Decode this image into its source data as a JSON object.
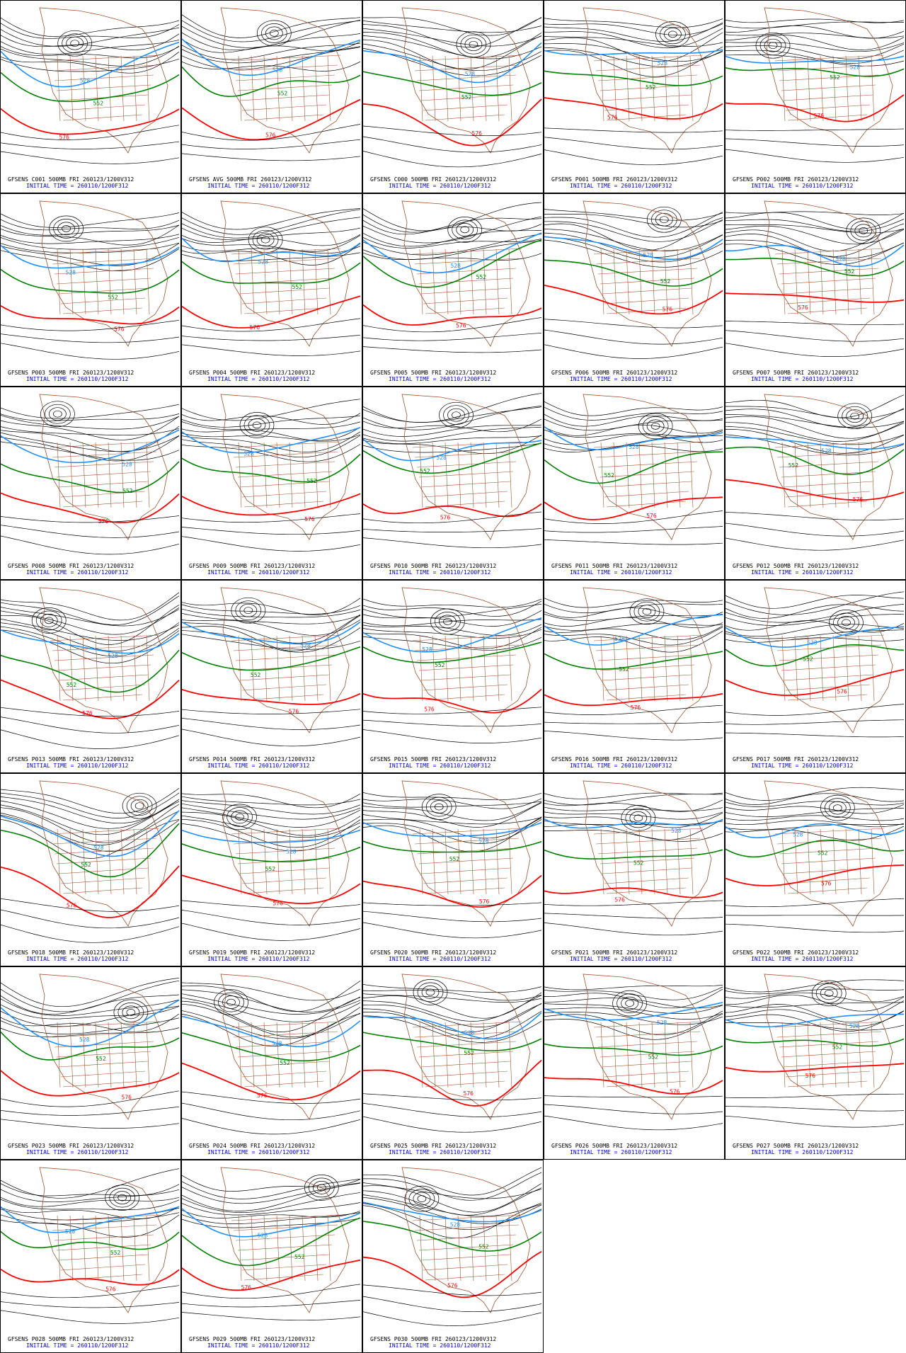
{
  "contour_colors": {
    "c528": "#1e8fff",
    "c552": "#008000",
    "c576": "#ff0000",
    "other": "#000000",
    "map": "#a0522d"
  },
  "contour_labels": {
    "c528": "528",
    "c552": "552",
    "c576": "576"
  },
  "panels": [
    {
      "title": "GFSENS C001 500MB FRI 260123/1200V312",
      "init": "INITIAL TIME = 260110/1200F312"
    },
    {
      "title": "GFSENS AVG 500MB FRI 260123/1200V312",
      "init": "INITIAL TIME = 260110/1200F312"
    },
    {
      "title": "GFSENS C000 500MB FRI 260123/1200V312",
      "init": "INITIAL TIME = 260110/1200F312"
    },
    {
      "title": "GFSENS P001 500MB FRI 260123/1200V312",
      "init": "INITIAL TIME = 260110/1200F312"
    },
    {
      "title": "GFSENS P002 500MB FRI 260123/1200V312",
      "init": "INITIAL TIME = 260110/1200F312"
    },
    {
      "title": "GFSENS P003 500MB FRI 260123/1200V312",
      "init": "INITIAL TIME = 260110/1200F312"
    },
    {
      "title": "GFSENS P004 500MB FRI 260123/1200V312",
      "init": "INITIAL TIME = 260110/1200F312"
    },
    {
      "title": "GFSENS P005 500MB FRI 260123/1200V312",
      "init": "INITIAL TIME = 260110/1200F312"
    },
    {
      "title": "GFSENS P006 500MB FRI 260123/1200V312",
      "init": "INITIAL TIME = 260110/1200F312"
    },
    {
      "title": "GFSENS P007 500MB FRI 260123/1200V312",
      "init": "INITIAL TIME = 260110/1200F312"
    },
    {
      "title": "GFSENS P008 500MB FRI 260123/1200V312",
      "init": "INITIAL TIME = 260110/1200F312"
    },
    {
      "title": "GFSENS P009 500MB FRI 260123/1200V312",
      "init": "INITIAL TIME = 260110/1200F312"
    },
    {
      "title": "GFSENS P010 500MB FRI 260123/1200V312",
      "init": "INITIAL TIME = 260110/1200F312"
    },
    {
      "title": "GFSENS P011 500MB FRI 260123/1200V312",
      "init": "INITIAL TIME = 260110/1200F312"
    },
    {
      "title": "GFSENS P012 500MB FRI 260123/1200V312",
      "init": "INITIAL TIME = 260110/1200F312"
    },
    {
      "title": "GFSENS P013 500MB FRI 260123/1200V312",
      "init": "INITIAL TIME = 260110/1200F312"
    },
    {
      "title": "GFSENS P014 500MB FRI 260123/1200V312",
      "init": "INITIAL TIME = 260110/1200F312"
    },
    {
      "title": "GFSENS P015 500MB FRI 260123/1200V312",
      "init": "INITIAL TIME = 260110/1200F312"
    },
    {
      "title": "GFSENS P016 500MB FRI 260123/1200V312",
      "init": "INITIAL TIME = 260110/1200F312"
    },
    {
      "title": "GFSENS P017 500MB FRI 260123/1200V312",
      "init": "INITIAL TIME = 260110/1200F312"
    },
    {
      "title": "GFSENS P018 500MB FRI 260123/1200V312",
      "init": "INITIAL TIME = 260110/1200F312"
    },
    {
      "title": "GFSENS P019 500MB FRI 260123/1200V312",
      "init": "INITIAL TIME = 260110/1200F312"
    },
    {
      "title": "GFSENS P020 500MB FRI 260123/1200V312",
      "init": "INITIAL TIME = 260110/1200F312"
    },
    {
      "title": "GFSENS P021 500MB FRI 260123/1200V312",
      "init": "INITIAL TIME = 260110/1200F312"
    },
    {
      "title": "GFSENS P022 500MB FRI 260123/1200V312",
      "init": "INITIAL TIME = 260110/1200F312"
    },
    {
      "title": "GFSENS P023 500MB FRI 260123/1200V312",
      "init": "INITIAL TIME = 260110/1200F312"
    },
    {
      "title": "GFSENS P024 500MB FRI 260123/1200V312",
      "init": "INITIAL TIME = 260110/1200F312"
    },
    {
      "title": "GFSENS P025 500MB FRI 260123/1200V312",
      "init": "INITIAL TIME = 260110/1200F312"
    },
    {
      "title": "GFSENS P026 500MB FRI 260123/1200V312",
      "init": "INITIAL TIME = 260110/1200F312"
    },
    {
      "title": "GFSENS P027 500MB FRI 260123/1200V312",
      "init": "INITIAL TIME = 260110/1200F312"
    },
    {
      "title": "GFSENS P028 500MB FRI 260123/1200V312",
      "init": "INITIAL TIME = 260110/1200F312"
    },
    {
      "title": "GFSENS P029 500MB FRI 260123/1200V312",
      "init": "INITIAL TIME = 260110/1200F312"
    },
    {
      "title": "GFSENS P030 500MB FRI 260123/1200V312",
      "init": "INITIAL TIME = 260110/1200F312"
    }
  ]
}
